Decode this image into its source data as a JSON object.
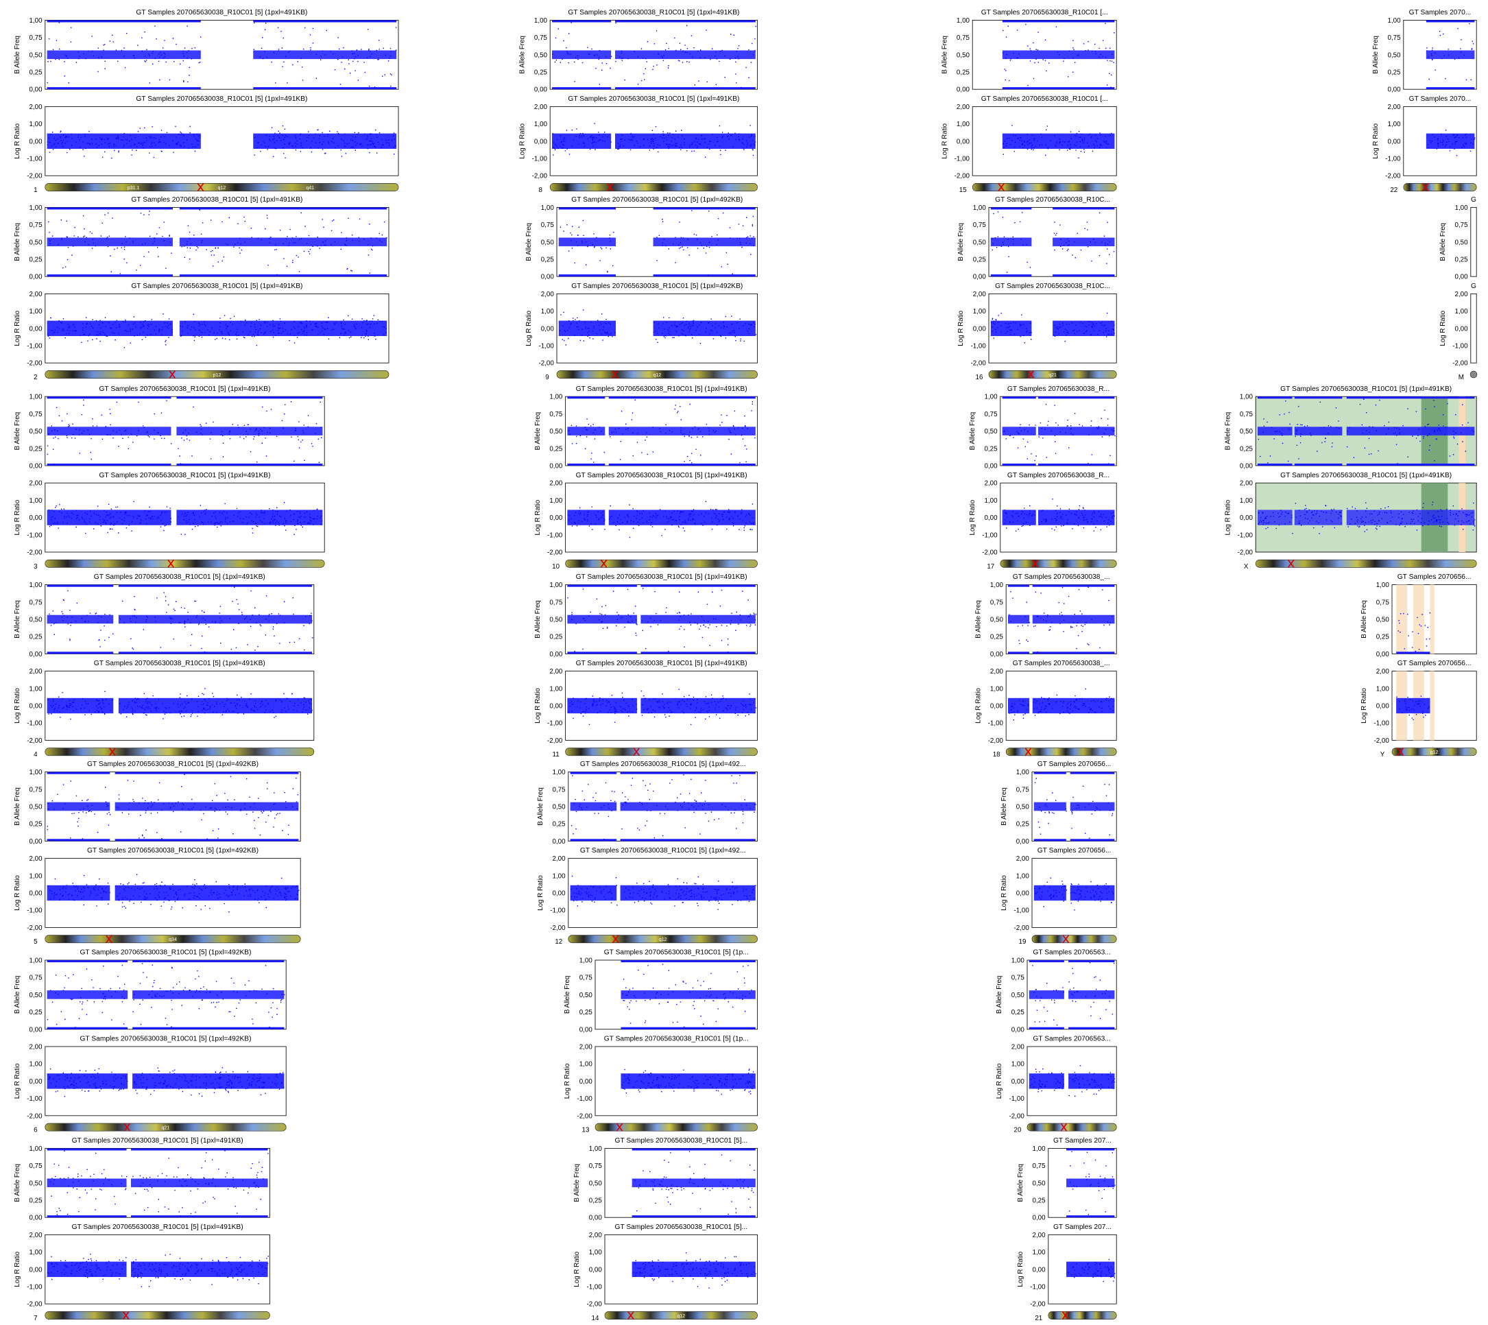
{
  "baf_label": "B Allele Freq",
  "lrr_label": "Log R Ratio",
  "baf_ticks": [
    "1,00",
    "0,75",
    "0,50",
    "0,25",
    "0,00"
  ],
  "lrr_ticks": [
    "2,00",
    "1,00",
    "0,00",
    "-1,00",
    "-2,00"
  ],
  "panels": [
    {
      "chrom": "1",
      "title": "GT Samples 207065630038_R10C01 [5]  (1pxl=491KB)",
      "bands": [
        "p31.1",
        "q12",
        "q41"
      ]
    },
    {
      "chrom": "2",
      "title": "GT Samples 207065630038_R10C01 [5]  (1pxl=491KB)",
      "bands": [
        "p12"
      ]
    },
    {
      "chrom": "3",
      "title": "GT Samples 207065630038_R10C01 [5]  (1pxl=491KB)",
      "bands": []
    },
    {
      "chrom": "4",
      "title": "GT Samples 207065630038_R10C01 [5]  (1pxl=491KB)",
      "bands": []
    },
    {
      "chrom": "5",
      "title": "GT Samples 207065630038_R10C01 [5]  (1pxl=492KB)",
      "bands": [
        "q34"
      ]
    },
    {
      "chrom": "6",
      "title": "GT Samples 207065630038_R10C01 [5]  (1pxl=492KB)",
      "bands": [
        "q21"
      ]
    },
    {
      "chrom": "7",
      "title": "GT Samples 207065630038_R10C01 [5]  (1pxl=491KB)",
      "bands": []
    },
    {
      "chrom": "8",
      "title": "GT Samples 207065630038_R10C01 [5]  (1pxl=491KB)",
      "bands": []
    },
    {
      "chrom": "9",
      "title": "GT Samples 207065630038_R10C01 [5]  (1pxl=492KB)",
      "bands": [
        "q12"
      ]
    },
    {
      "chrom": "10",
      "title": "GT Samples 207065630038_R10C01 [5]  (1pxl=491KB)",
      "bands": []
    },
    {
      "chrom": "11",
      "title": "GT Samples 207065630038_R10C01 [5]  (1pxl=491KB)",
      "bands": []
    },
    {
      "chrom": "12",
      "title": "GT Samples 207065630038_R10C01 [5]  (1pxl=492...",
      "bands": [
        "q12"
      ]
    },
    {
      "chrom": "13",
      "title": "GT Samples 207065630038_R10C01 [5]  (1p...",
      "bands": []
    },
    {
      "chrom": "14",
      "title": "GT Samples 207065630038_R10C01 [5]...",
      "bands": [
        "q12"
      ]
    },
    {
      "chrom": "15",
      "title": "GT Samples 207065630038_R10C01 [...",
      "bands": []
    },
    {
      "chrom": "16",
      "title": "GT Samples 207065630038_R10C...",
      "bands": [
        "q21"
      ]
    },
    {
      "chrom": "17",
      "title": "GT Samples 207065630038_R...",
      "bands": []
    },
    {
      "chrom": "18",
      "title": "GT Samples 207065630038_...",
      "bands": []
    },
    {
      "chrom": "19",
      "title": "GT Samples 2070656...",
      "bands": []
    },
    {
      "chrom": "20",
      "title": "GT Samples 20706563...",
      "bands": []
    },
    {
      "chrom": "21",
      "title": "GT Samples 207...",
      "bands": []
    },
    {
      "chrom": "22",
      "title": "GT Samples 2070...",
      "bands": []
    },
    {
      "chrom": "M",
      "title": "G",
      "bands": []
    },
    {
      "chrom": "X",
      "title": "GT Samples 207065630038_R10C01 [5]  (1pxl=491KB)",
      "bands": []
    },
    {
      "chrom": "Y",
      "title": "GT Samples 2070656...",
      "bands": [
        "q12"
      ]
    }
  ]
}
